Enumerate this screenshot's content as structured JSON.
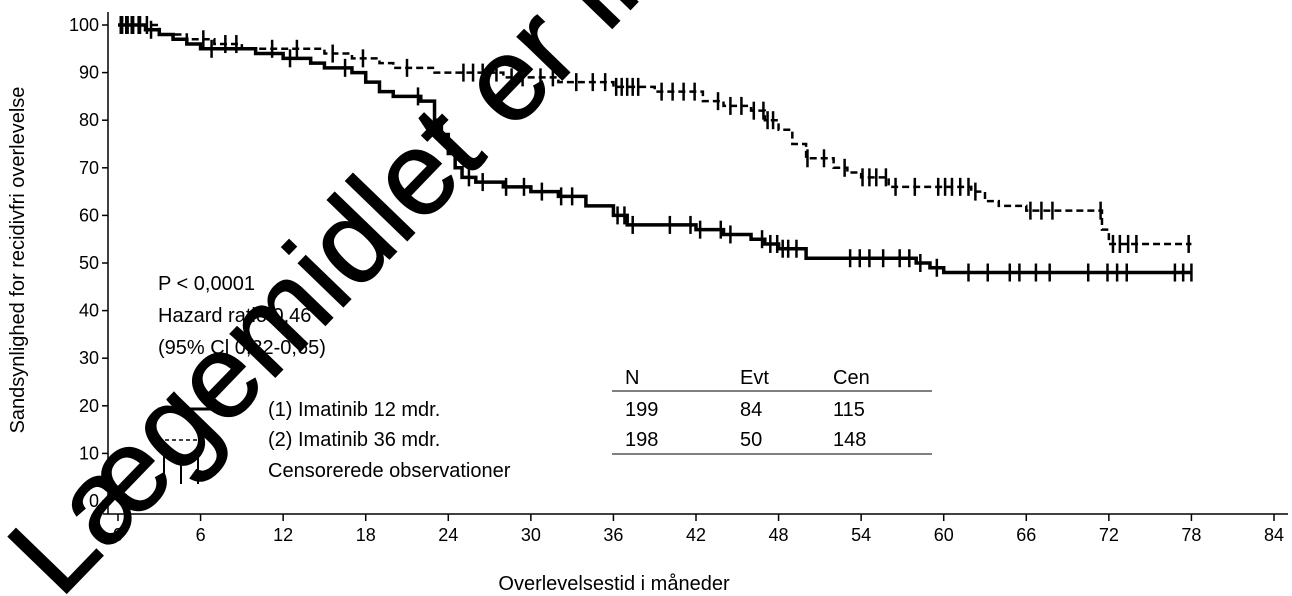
{
  "chart_data": {
    "type": "line",
    "subtype": "kaplan-meier",
    "xlabel": "Overlevelsestid i måneder",
    "ylabel": "Sandsynlighed for recidivfri overlevelse",
    "xlim": [
      0,
      84
    ],
    "ylim": [
      0,
      100
    ],
    "xticks": [
      0,
      6,
      12,
      18,
      24,
      30,
      36,
      42,
      48,
      54,
      60,
      66,
      72,
      78,
      84
    ],
    "yticks": [
      0,
      10,
      20,
      30,
      40,
      50,
      60,
      70,
      80,
      90,
      100
    ],
    "grid": false,
    "series": [
      {
        "name": "(1) Imatinib 12 mdr.",
        "style": "solid",
        "x": [
          0,
          2,
          3,
          4,
          5,
          6,
          8,
          10,
          12,
          14,
          15,
          17,
          18,
          19,
          20,
          22,
          23,
          23.5,
          24,
          24.5,
          25,
          26,
          28,
          30,
          32,
          34,
          36,
          37,
          40,
          42,
          44,
          46,
          47,
          48,
          50,
          54,
          58,
          59,
          60,
          78
        ],
        "y": [
          100,
          99,
          98,
          97,
          96,
          95,
          95,
          94,
          93,
          92,
          91,
          90,
          88,
          86,
          85,
          84,
          80,
          77,
          73,
          70,
          68,
          67,
          66,
          65,
          64,
          62,
          60,
          58,
          58,
          57,
          56,
          55,
          54,
          53,
          51,
          51,
          50,
          49,
          48,
          48
        ],
        "censor_x": [
          0.3,
          0.7,
          1.1,
          1.6,
          2.4,
          6.8,
          12.5,
          16.5,
          21.8,
          25.5,
          26.5,
          28.2,
          29.5,
          30.8,
          32.2,
          33,
          36.3,
          36.8,
          37.4,
          40.1,
          41.6,
          42.3,
          43.8,
          44.5,
          46.8,
          47.4,
          47.9,
          48.3,
          48.7,
          49.3,
          53.2,
          53.9,
          54.6,
          55.6,
          56.8,
          57.5,
          58.3,
          59.5,
          61.8,
          63.2,
          64.8,
          65.5,
          66.7,
          67.7,
          70.5,
          71.9,
          72.6,
          73.3,
          76.8,
          77.4,
          78
        ]
      },
      {
        "name": "(2) Imatinib 36 mdr.",
        "style": "dashed",
        "x": [
          0,
          3,
          5,
          7,
          9,
          12,
          15,
          17,
          19,
          20,
          23,
          25,
          28,
          32,
          36,
          39,
          41,
          42.5,
          44,
          46,
          47,
          48,
          49,
          50,
          52,
          53,
          54,
          56,
          58,
          60,
          62,
          63,
          64,
          66,
          70,
          71.5,
          72,
          78
        ],
        "y": [
          100,
          98,
          97,
          96,
          95,
          95,
          94,
          93,
          92,
          91,
          90,
          90,
          89,
          88,
          87,
          86,
          86,
          84,
          83,
          82,
          80,
          78,
          75,
          72,
          70,
          69,
          68,
          66,
          66,
          66,
          65,
          63,
          62,
          61,
          61,
          57,
          54,
          54
        ],
        "censor_x": [
          0.2,
          0.6,
          1,
          1.5,
          2.1,
          6.2,
          7.8,
          8.6,
          11.2,
          13,
          15.6,
          17.8,
          21,
          25.1,
          25.8,
          26.5,
          27.5,
          28.6,
          29.4,
          30.7,
          31.6,
          33.3,
          34.5,
          35.4,
          36.2,
          36.6,
          37,
          37.4,
          37.8,
          39.5,
          40.3,
          41.1,
          41.9,
          43.6,
          44.5,
          45.3,
          46.2,
          46.9,
          47.2,
          47.6,
          50.1,
          51.3,
          52.8,
          54.1,
          54.6,
          55.1,
          55.8,
          56.5,
          57.9,
          59.6,
          60.1,
          60.6,
          61.2,
          61.8,
          62.3,
          66.3,
          67.1,
          67.9,
          71.4,
          72.3,
          72.8,
          73.4,
          74,
          77.8
        ]
      }
    ],
    "legend": {
      "entries": [
        "(1) Imatinib 12 mdr.",
        "(2) Imatinib 36 mdr.",
        "Censorerede observationer"
      ]
    },
    "annotation": [
      "P < 0,0001",
      "Hazard ratio 0,46",
      "(95% Cl 0,32-0,65)"
    ],
    "table": {
      "headers": [
        "N",
        "Evt",
        "Cen"
      ],
      "rows": [
        [
          "199",
          "84",
          "115"
        ],
        [
          "198",
          "50",
          "148"
        ]
      ]
    },
    "watermark": "Lægemidlet er ikke længere"
  }
}
